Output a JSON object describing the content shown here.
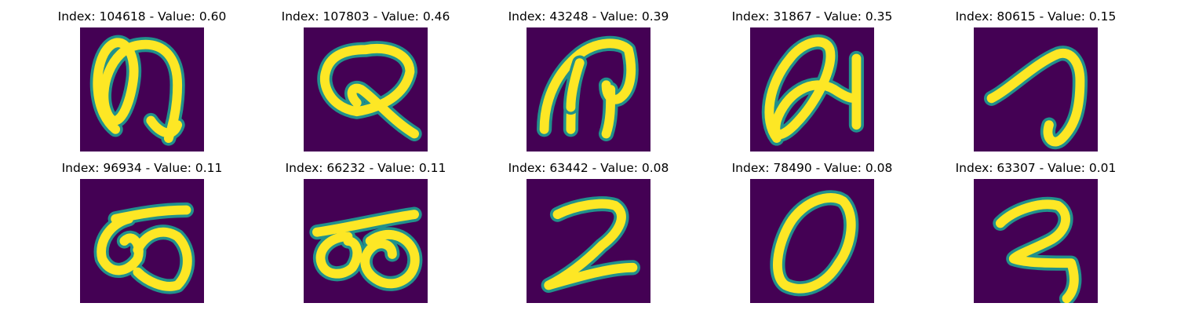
{
  "figure": {
    "background": "#ffffff"
  },
  "colors": {
    "background": "#440154",
    "stroke_core": "#fde725",
    "stroke_edge": "#21918c"
  },
  "chart_data": {
    "type": "image-grid",
    "rows": 2,
    "cols": 5,
    "colormap": "viridis",
    "title_template": "Index: {index} - Value: {value}",
    "images": [
      {
        "index": 104618,
        "value": "0.60",
        "title": "Index: 104618 - Value: 0.60",
        "glyph": "loop-tall"
      },
      {
        "index": 107803,
        "value": "0.46",
        "title": "Index: 107803 - Value: 0.46",
        "glyph": "Q-like"
      },
      {
        "index": 43248,
        "value": "0.39",
        "title": "Index: 43248 - Value: 0.39",
        "glyph": "arch-hook"
      },
      {
        "index": 31867,
        "value": "0.35",
        "title": "Index: 31867 - Value: 0.35",
        "glyph": "slanted-loop-bar"
      },
      {
        "index": 80615,
        "value": "0.15",
        "title": "Index: 80615 - Value: 0.15",
        "glyph": "seven-like"
      },
      {
        "index": 96934,
        "value": "0.11",
        "title": "Index: 96934 - Value: 0.11",
        "glyph": "bar-double-loop"
      },
      {
        "index": 66232,
        "value": "0.11",
        "title": "Index: 66232 - Value: 0.11",
        "glyph": "bar-two-circles"
      },
      {
        "index": 63442,
        "value": "0.08",
        "title": "Index: 63442 - Value: 0.08",
        "glyph": "two-like"
      },
      {
        "index": 78490,
        "value": "0.08",
        "title": "Index: 78490 - Value: 0.08",
        "glyph": "zero-like"
      },
      {
        "index": 63307,
        "value": "0.01",
        "title": "Index: 63307 - Value: 0.01",
        "glyph": "two-hooked"
      }
    ]
  }
}
